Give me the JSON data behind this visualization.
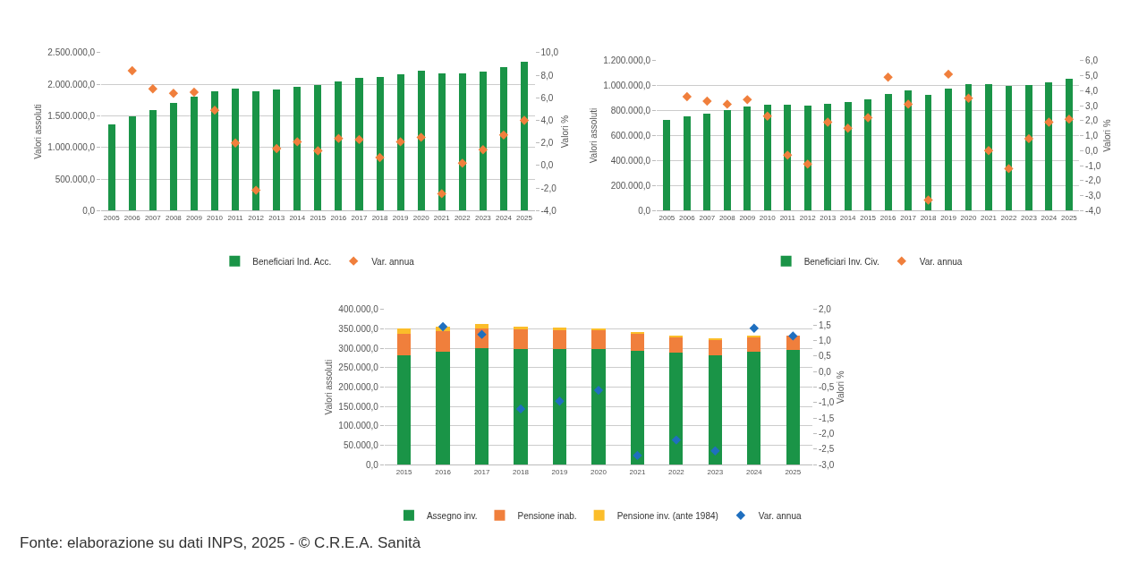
{
  "chart_data": [
    {
      "type": "bar",
      "categories": [
        "2005",
        "2006",
        "2007",
        "2008",
        "2009",
        "2010",
        "2011",
        "2012",
        "2013",
        "2014",
        "2015",
        "2016",
        "2017",
        "2018",
        "2019",
        "2020",
        "2021",
        "2022",
        "2023",
        "2024",
        "2025"
      ],
      "ylabel": "Valori assoluti",
      "y2label": "Valori %",
      "grid": "y",
      "legend": "bottom",
      "ylim": [
        0,
        2500000
      ],
      "yticks": [
        {
          "value": 0,
          "label": "0,0"
        },
        {
          "value": 500000,
          "label": "500.000,0"
        },
        {
          "value": 1000000,
          "label": "1.000.000,0"
        },
        {
          "value": 1500000,
          "label": "1.500.000,0"
        },
        {
          "value": 2000000,
          "label": "2.000.000,0"
        },
        {
          "value": 2500000,
          "label": "2.500.000,0"
        }
      ],
      "y2lim": [
        -4,
        10
      ],
      "y2ticks": [
        {
          "value": -4,
          "label": "-4,0"
        },
        {
          "value": -2,
          "label": "-2,0"
        },
        {
          "value": 0,
          "label": "0,0"
        },
        {
          "value": 2,
          "label": "2,0"
        },
        {
          "value": 4,
          "label": "4,0"
        },
        {
          "value": 6,
          "label": "6,0"
        },
        {
          "value": 8,
          "label": "8,0"
        },
        {
          "value": 10,
          "label": "10,0"
        }
      ],
      "series": [
        {
          "name": "Beneficiari Ind. Acc.",
          "type": "bar",
          "color": "#1a9447",
          "values": [
            1370000,
            1490000,
            1590000,
            1700000,
            1800000,
            1890000,
            1930000,
            1890000,
            1920000,
            1960000,
            1990000,
            2050000,
            2100000,
            2110000,
            2160000,
            2210000,
            2170000,
            2170000,
            2200000,
            2270000,
            2360000
          ]
        },
        {
          "name": "Var. annua",
          "type": "scatter",
          "axis": "y2",
          "marker": "diamond",
          "color": "#f07f3c",
          "values": [
            null,
            8.4,
            6.8,
            6.4,
            6.5,
            4.9,
            2.0,
            -2.2,
            1.5,
            2.1,
            1.3,
            2.4,
            2.3,
            0.7,
            2.1,
            2.5,
            -2.5,
            0.2,
            1.4,
            2.7,
            4.0
          ]
        }
      ]
    },
    {
      "type": "bar",
      "categories": [
        "2005",
        "2006",
        "2007",
        "2008",
        "2009",
        "2010",
        "2011",
        "2012",
        "2013",
        "2014",
        "2015",
        "2016",
        "2017",
        "2018",
        "2019",
        "2020",
        "2021",
        "2022",
        "2023",
        "2024",
        "2025"
      ],
      "ylabel": "Valori assoluti",
      "y2label": "Valori %",
      "grid": "y",
      "legend": "bottom",
      "ylim": [
        0,
        1200000
      ],
      "yticks": [
        {
          "value": 0,
          "label": "0,0"
        },
        {
          "value": 200000,
          "label": "200.000,0"
        },
        {
          "value": 400000,
          "label": "400.000,0"
        },
        {
          "value": 600000,
          "label": "600.000,0"
        },
        {
          "value": 800000,
          "label": "800.000,0"
        },
        {
          "value": 1000000,
          "label": "1.000.000,0"
        },
        {
          "value": 1200000,
          "label": "1.200.000,0"
        }
      ],
      "y2lim": [
        -4,
        6
      ],
      "y2ticks": [
        {
          "value": -4,
          "label": "-4,0"
        },
        {
          "value": -3,
          "label": "-3,0"
        },
        {
          "value": -2,
          "label": "-2,0"
        },
        {
          "value": -1,
          "label": "-1,0"
        },
        {
          "value": 0,
          "label": "0,0"
        },
        {
          "value": 1,
          "label": "1,0"
        },
        {
          "value": 2,
          "label": "2,0"
        },
        {
          "value": 3,
          "label": "3,0"
        },
        {
          "value": 4,
          "label": "4,0"
        },
        {
          "value": 5,
          "label": "5,0"
        },
        {
          "value": 6,
          "label": "6,0"
        }
      ],
      "series": [
        {
          "name": "Beneficiari Inv. Civ.",
          "type": "bar",
          "color": "#1a9447",
          "values": [
            723000,
            752000,
            779000,
            806000,
            832000,
            848000,
            848000,
            843000,
            858000,
            870000,
            890000,
            933000,
            960000,
            928000,
            978000,
            1014000,
            1014000,
            1000000,
            1008000,
            1030000,
            1052000
          ]
        },
        {
          "name": "Var. annua",
          "type": "scatter",
          "axis": "y2",
          "marker": "diamond",
          "color": "#f07f3c",
          "values": [
            null,
            3.6,
            3.3,
            3.1,
            3.4,
            2.3,
            -0.3,
            -0.9,
            1.9,
            1.5,
            2.2,
            4.9,
            3.1,
            -3.3,
            5.1,
            3.5,
            0.0,
            -1.2,
            0.8,
            1.9,
            2.1
          ]
        }
      ]
    },
    {
      "type": "bar",
      "stacked": true,
      "categories": [
        "2015",
        "2016",
        "2017",
        "2018",
        "2019",
        "2020",
        "2021",
        "2022",
        "2023",
        "2024",
        "2025"
      ],
      "ylabel": "Valori assoluti",
      "y2label": "Valori %",
      "grid": "y",
      "legend": "bottom",
      "ylim": [
        0,
        400000
      ],
      "yticks": [
        {
          "value": 0,
          "label": "0,0"
        },
        {
          "value": 50000,
          "label": "50.000,0"
        },
        {
          "value": 100000,
          "label": "100.000,0"
        },
        {
          "value": 150000,
          "label": "150.000,0"
        },
        {
          "value": 200000,
          "label": "200.000,0"
        },
        {
          "value": 250000,
          "label": "250.000,0"
        },
        {
          "value": 300000,
          "label": "300.000,0"
        },
        {
          "value": 350000,
          "label": "350.000,0"
        },
        {
          "value": 400000,
          "label": "400.000,0"
        }
      ],
      "y2lim": [
        -3,
        2
      ],
      "y2ticks": [
        {
          "value": -3,
          "label": "-3,0"
        },
        {
          "value": -2.5,
          "label": "-2,5"
        },
        {
          "value": -2,
          "label": "-2,0"
        },
        {
          "value": -1.5,
          "label": "-1,5"
        },
        {
          "value": -1,
          "label": "-1,0"
        },
        {
          "value": -0.5,
          "label": "-0,5"
        },
        {
          "value": 0,
          "label": "0,0"
        },
        {
          "value": 0.5,
          "label": "0,5"
        },
        {
          "value": 1,
          "label": "1,0"
        },
        {
          "value": 1.5,
          "label": "1,5"
        },
        {
          "value": 2,
          "label": "2,0"
        }
      ],
      "series": [
        {
          "name": "Assegno inv.",
          "type": "bar",
          "color": "#1a9447",
          "values": [
            283000,
            292000,
            300000,
            299000,
            299000,
            299000,
            294000,
            290000,
            283000,
            291000,
            297000
          ]
        },
        {
          "name": "Pensione inab.",
          "type": "bar",
          "color": "#f07f3c",
          "values": [
            54000,
            53000,
            52000,
            49000,
            48000,
            48000,
            43000,
            40000,
            39000,
            38000,
            36000
          ]
        },
        {
          "name": "Pensione inv. (ante 1984)",
          "type": "bar",
          "color": "#fbbd2a",
          "values": [
            15000,
            12000,
            10000,
            9000,
            6000,
            5000,
            5000,
            4000,
            4000,
            2000,
            null
          ]
        },
        {
          "name": "Var. annua",
          "type": "scatter",
          "axis": "y2",
          "marker": "diamond",
          "color": "#1f6fbf",
          "values": [
            null,
            1.45,
            1.2,
            -1.2,
            -0.95,
            -0.6,
            -2.7,
            -2.2,
            -2.55,
            1.4,
            1.15
          ]
        }
      ]
    },
    {
      "type": "other",
      "annotations": [
        "Fonte: elaborazione su dati INPS, 2025 - © C.R.E.A. Sanità"
      ]
    }
  ]
}
